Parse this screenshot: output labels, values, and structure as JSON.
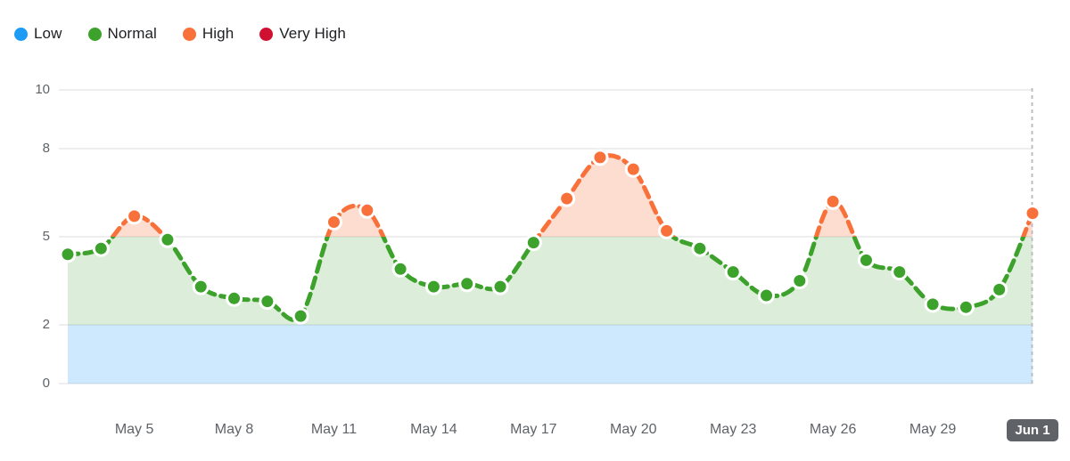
{
  "legend": {
    "items": [
      {
        "id": "low",
        "label": "Low",
        "color": "#1e9bf5"
      },
      {
        "id": "normal",
        "label": "Normal",
        "color": "#3da22c"
      },
      {
        "id": "high",
        "label": "High",
        "color": "#f8703a"
      },
      {
        "id": "very-high",
        "label": "Very High",
        "color": "#d01031"
      }
    ]
  },
  "chart_data": {
    "type": "area",
    "x": [
      "May 3",
      "May 4",
      "May 5",
      "May 6",
      "May 7",
      "May 8",
      "May 9",
      "May 10",
      "May 11",
      "May 12",
      "May 13",
      "May 14",
      "May 15",
      "May 16",
      "May 17",
      "May 18",
      "May 19",
      "May 20",
      "May 21",
      "May 22",
      "May 23",
      "May 24",
      "May 25",
      "May 26",
      "May 27",
      "May 28",
      "May 29",
      "May 30",
      "May 31",
      "Jun 1"
    ],
    "values": [
      4.4,
      4.6,
      5.7,
      4.9,
      3.3,
      2.9,
      2.8,
      2.3,
      5.5,
      5.9,
      3.9,
      3.3,
      3.4,
      3.3,
      4.8,
      6.3,
      7.7,
      7.3,
      5.2,
      4.6,
      3.8,
      3.0,
      3.5,
      6.2,
      4.2,
      3.8,
      2.7,
      2.6,
      3.2,
      5.8
    ],
    "yticks": [
      0,
      2,
      5,
      8,
      10
    ],
    "ylim": [
      0,
      10
    ],
    "xticks": [
      {
        "label": "May 5",
        "index": 2,
        "selected": false
      },
      {
        "label": "May 8",
        "index": 5,
        "selected": false
      },
      {
        "label": "May 11",
        "index": 8,
        "selected": false
      },
      {
        "label": "May 14",
        "index": 11,
        "selected": false
      },
      {
        "label": "May 17",
        "index": 14,
        "selected": false
      },
      {
        "label": "May 20",
        "index": 17,
        "selected": false
      },
      {
        "label": "May 23",
        "index": 20,
        "selected": false
      },
      {
        "label": "May 26",
        "index": 23,
        "selected": false
      },
      {
        "label": "May 29",
        "index": 26,
        "selected": false
      },
      {
        "label": "Jun 1",
        "index": 29,
        "selected": true
      }
    ],
    "zones": [
      {
        "name": "Low",
        "from": 0,
        "to": 2,
        "color": "#1e9bf5",
        "fill_opacity": 0.22
      },
      {
        "name": "Normal",
        "from": 2,
        "to": 5,
        "color": "#3da22c",
        "fill_opacity": 0.18
      },
      {
        "name": "High",
        "from": 5,
        "to": 8,
        "color": "#f8703a",
        "fill_opacity": 0.24
      },
      {
        "name": "Very High",
        "from": 8,
        "to": 10,
        "color": "#d01031",
        "fill_opacity": 0.24
      }
    ],
    "high_threshold": 5,
    "grid": true,
    "legend_position": "top-left",
    "styles": {
      "line_normal": "#3da22c",
      "line_high": "#f8703a",
      "grid_color": "#e8e9eb",
      "axis_label_color": "#5f6368",
      "selected_tick_bg": "#5f6368",
      "selected_tick_color": "#ffffff",
      "dashed_cursor_color": "#b7b9bd",
      "point_border": "#ffffff"
    }
  }
}
